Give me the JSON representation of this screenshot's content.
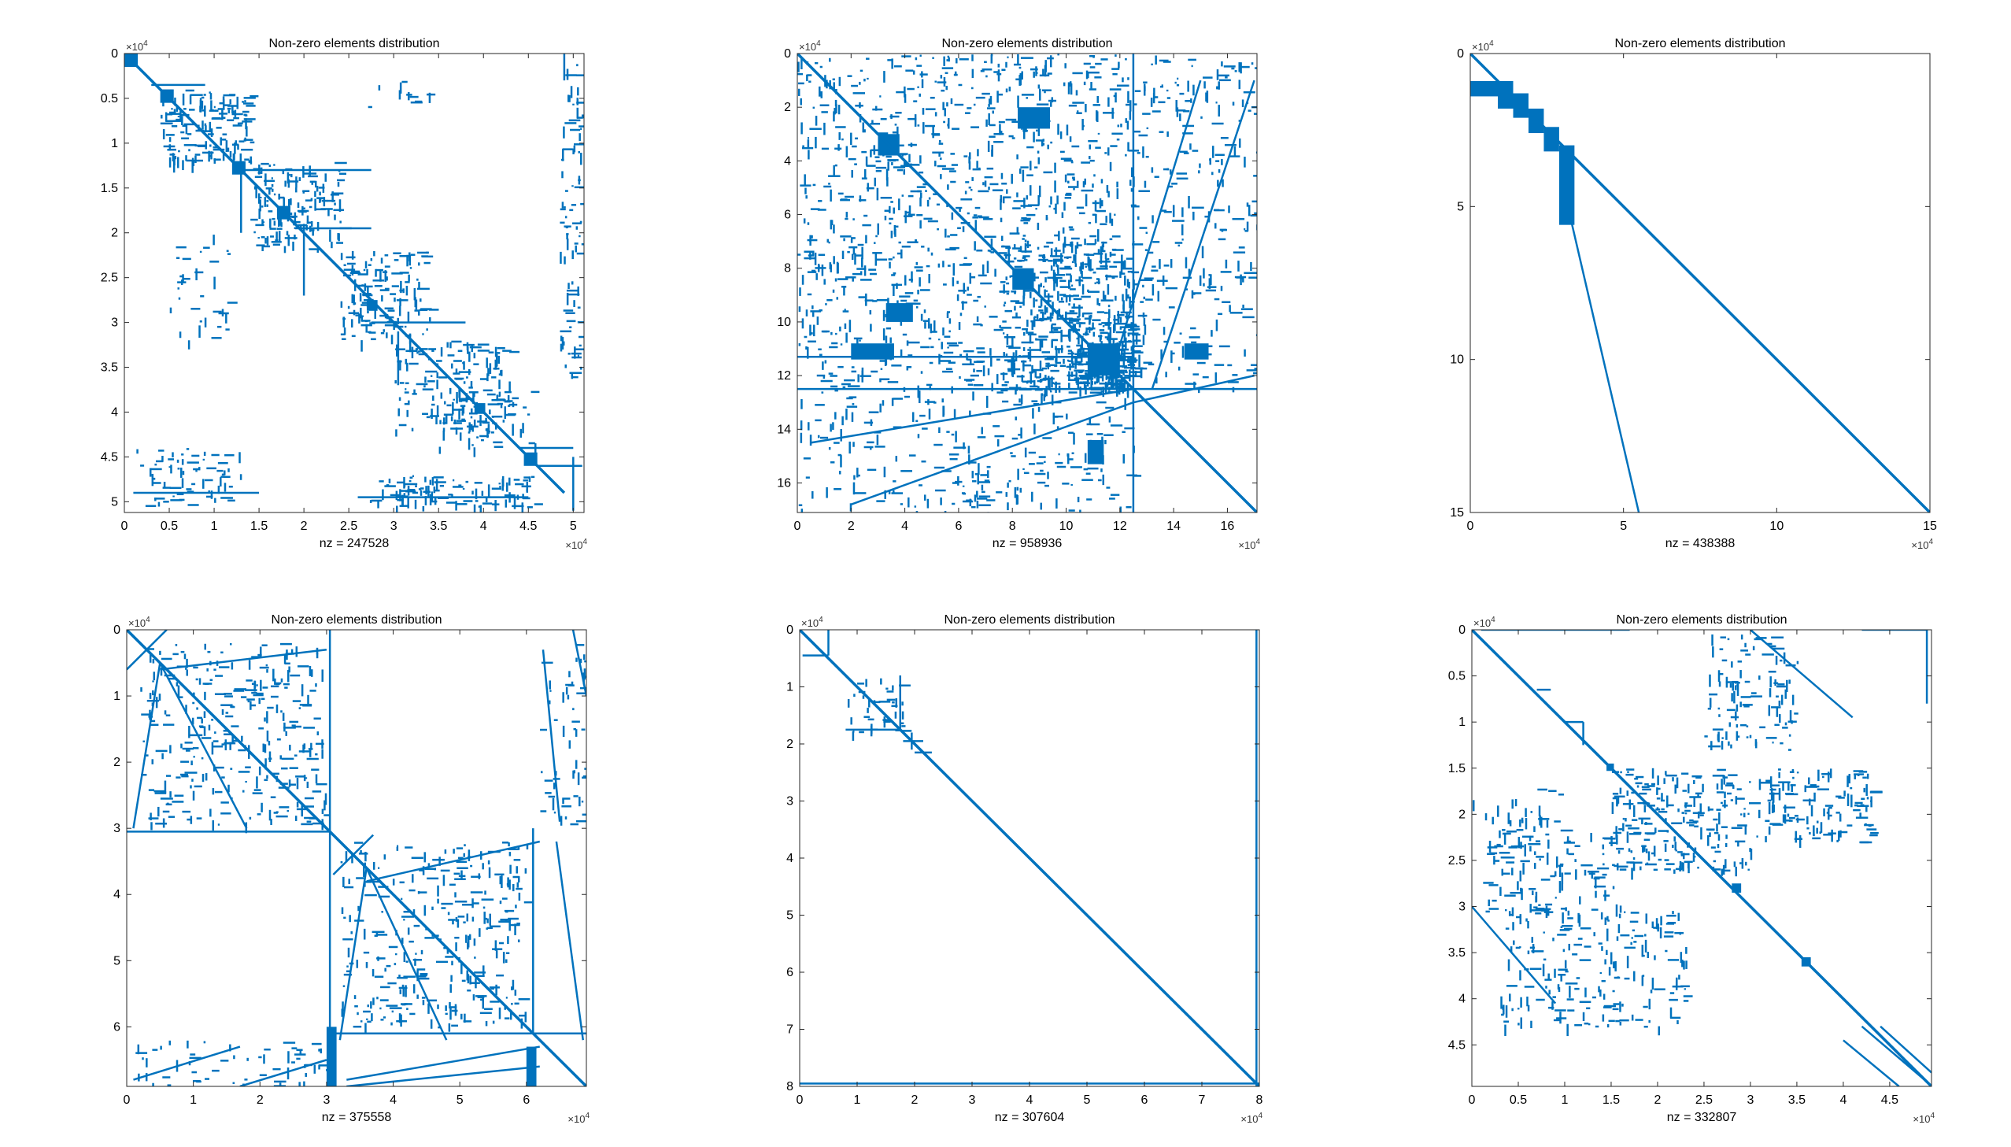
{
  "colors": {
    "marker": "#0072BD",
    "axes": "#262626",
    "background": "#ffffff"
  },
  "chart_data": [
    {
      "type": "scatter",
      "subtype": "sparsity-pattern",
      "title": "Non-zero elements distribution",
      "xlabel": "nz = 247528",
      "exponent_label": "×10",
      "exponent_power": "4",
      "xlim": [
        0,
        5.12
      ],
      "ylim": [
        0,
        5.12
      ],
      "y_reversed": true,
      "xticks": [
        0,
        0.5,
        1,
        1.5,
        2,
        2.5,
        3,
        3.5,
        4,
        4.5,
        5
      ],
      "xtick_labels": [
        "0",
        "0.5",
        "1",
        "1.5",
        "2",
        "2.5",
        "3",
        "3.5",
        "4",
        "4.5",
        "5"
      ],
      "yticks": [
        0,
        0.5,
        1,
        1.5,
        2,
        2.5,
        3,
        3.5,
        4,
        4.5,
        5
      ],
      "ytick_labels": [
        "0",
        "0.5",
        "1",
        "1.5",
        "2",
        "2.5",
        "3",
        "3.5",
        "4",
        "4.5",
        "5"
      ],
      "diagonals": [
        {
          "x1": 0,
          "y1": 0,
          "x2": 4.9,
          "y2": 4.9
        }
      ],
      "segments": [
        {
          "x1": 1.3,
          "y1": 1.3,
          "x2": 2.75,
          "y2": 1.3
        },
        {
          "x1": 1.3,
          "y1": 1.3,
          "x2": 1.3,
          "y2": 2.0
        },
        {
          "x1": 1.9,
          "y1": 1.95,
          "x2": 2.75,
          "y2": 1.95
        },
        {
          "x1": 2.0,
          "y1": 1.9,
          "x2": 2.0,
          "y2": 2.7
        },
        {
          "x1": 2.75,
          "y1": 3.0,
          "x2": 3.8,
          "y2": 3.0
        },
        {
          "x1": 3.05,
          "y1": 3.1,
          "x2": 3.05,
          "y2": 3.7
        },
        {
          "x1": 0.3,
          "y1": 0.35,
          "x2": 0.9,
          "y2": 0.35
        },
        {
          "x1": 4.4,
          "y1": 4.4,
          "x2": 5.0,
          "y2": 4.4
        },
        {
          "x1": 0.1,
          "y1": 4.9,
          "x2": 1.5,
          "y2": 4.9
        },
        {
          "x1": 2.6,
          "y1": 4.95,
          "x2": 4.5,
          "y2": 4.95
        },
        {
          "x1": 4.9,
          "y1": 0,
          "x2": 4.9,
          "y2": 0.3
        },
        {
          "x1": 5.0,
          "y1": 4.5,
          "x2": 5.0,
          "y2": 5.1
        },
        {
          "x1": 4.6,
          "y1": 4.6,
          "x2": 5.1,
          "y2": 4.6
        }
      ],
      "blocks": [
        {
          "x": 0,
          "y": 0,
          "w": 0.15,
          "h": 0.15
        },
        {
          "x": 0.4,
          "y": 0.4,
          "w": 0.15,
          "h": 0.15
        },
        {
          "x": 1.2,
          "y": 1.2,
          "w": 0.15,
          "h": 0.15
        },
        {
          "x": 1.7,
          "y": 1.7,
          "w": 0.15,
          "h": 0.15
        },
        {
          "x": 2.7,
          "y": 2.75,
          "w": 0.12,
          "h": 0.12
        },
        {
          "x": 3.9,
          "y": 3.9,
          "w": 0.12,
          "h": 0.12
        },
        {
          "x": 4.45,
          "y": 4.45,
          "w": 0.15,
          "h": 0.15
        }
      ],
      "clusters": [
        {
          "x1": 0.4,
          "y1": 0.4,
          "x2": 1.4,
          "y2": 1.2,
          "n": 160
        },
        {
          "x1": 1.4,
          "y1": 1.2,
          "x2": 2.4,
          "y2": 2.2,
          "n": 150
        },
        {
          "x1": 2.4,
          "y1": 2.2,
          "x2": 3.4,
          "y2": 3.2,
          "n": 140
        },
        {
          "x1": 3.0,
          "y1": 3.2,
          "x2": 4.3,
          "y2": 4.2,
          "n": 150
        },
        {
          "x1": 0.1,
          "y1": 4.4,
          "x2": 1.3,
          "y2": 5.05,
          "n": 70
        },
        {
          "x1": 2.7,
          "y1": 4.7,
          "x2": 4.6,
          "y2": 5.05,
          "n": 110
        },
        {
          "x1": 4.85,
          "y1": 0.1,
          "x2": 5.1,
          "y2": 3.6,
          "n": 90
        },
        {
          "x1": 0.5,
          "y1": 2.0,
          "x2": 1.2,
          "y2": 3.2,
          "n": 35
        },
        {
          "x1": 2.7,
          "y1": 0.3,
          "x2": 3.4,
          "y2": 0.6,
          "n": 12
        },
        {
          "x1": 3.5,
          "y1": 3.6,
          "x2": 4.6,
          "y2": 4.4,
          "n": 60
        }
      ]
    },
    {
      "type": "scatter",
      "subtype": "sparsity-pattern",
      "title": "Non-zero elements distribution",
      "xlabel": "nz = 958936",
      "exponent_label": "×10",
      "exponent_power": "4",
      "xlim": [
        0,
        17.1
      ],
      "ylim": [
        0,
        17.1
      ],
      "y_reversed": true,
      "xticks": [
        0,
        2,
        4,
        6,
        8,
        10,
        12,
        14,
        16
      ],
      "xtick_labels": [
        "0",
        "2",
        "4",
        "6",
        "8",
        "10",
        "12",
        "14",
        "16"
      ],
      "yticks": [
        0,
        2,
        4,
        6,
        8,
        10,
        12,
        14,
        16
      ],
      "ytick_labels": [
        "0",
        "2",
        "4",
        "6",
        "8",
        "10",
        "12",
        "14",
        "16"
      ],
      "diagonals": [
        {
          "x1": 0,
          "y1": 0,
          "x2": 17.1,
          "y2": 17.1
        },
        {
          "x1": 0.5,
          "y1": 14.5,
          "x2": 12.5,
          "y2": 12.5
        },
        {
          "x1": 2.0,
          "y1": 16.8,
          "x2": 12.5,
          "y2": 13.0
        },
        {
          "x1": 13.2,
          "y1": 12.5,
          "x2": 17.0,
          "y2": 1.0
        },
        {
          "x1": 11.5,
          "y1": 12.5,
          "x2": 15.0,
          "y2": 1.0
        },
        {
          "x1": 12.5,
          "y1": 13.0,
          "x2": 17.0,
          "y2": 12.0
        }
      ],
      "segments": [
        {
          "x1": 0,
          "y1": 12.5,
          "x2": 17.1,
          "y2": 12.5
        },
        {
          "x1": 12.5,
          "y1": 0,
          "x2": 12.5,
          "y2": 17.1
        },
        {
          "x1": 0,
          "y1": 11.3,
          "x2": 12.5,
          "y2": 11.3
        }
      ],
      "blocks": [
        {
          "x": 10.8,
          "y": 10.8,
          "w": 1.2,
          "h": 1.2
        },
        {
          "x": 3.0,
          "y": 3.0,
          "w": 0.8,
          "h": 0.8
        },
        {
          "x": 8.0,
          "y": 8.0,
          "w": 0.8,
          "h": 0.8
        },
        {
          "x": 10.8,
          "y": 14.4,
          "w": 0.6,
          "h": 0.9
        },
        {
          "x": 14.4,
          "y": 10.8,
          "w": 0.9,
          "h": 0.6
        },
        {
          "x": 8.2,
          "y": 2.0,
          "w": 1.2,
          "h": 0.8
        },
        {
          "x": 3.3,
          "y": 9.3,
          "w": 1.0,
          "h": 0.7
        },
        {
          "x": 2.0,
          "y": 10.8,
          "w": 1.6,
          "h": 0.6
        }
      ],
      "clusters": [
        {
          "x1": 0,
          "y1": 0,
          "x2": 12.5,
          "y2": 12.5,
          "n": 1100
        },
        {
          "x1": 12.5,
          "y1": 0,
          "x2": 17.1,
          "y2": 12.5,
          "n": 260
        },
        {
          "x1": 0,
          "y1": 12.5,
          "x2": 12.5,
          "y2": 17.1,
          "n": 260
        },
        {
          "x1": 7.5,
          "y1": 7.0,
          "x2": 12.5,
          "y2": 12.5,
          "n": 300
        },
        {
          "x1": 10.0,
          "y1": 10.0,
          "x2": 12.5,
          "y2": 12.5,
          "n": 200
        }
      ]
    },
    {
      "type": "scatter",
      "subtype": "sparsity-pattern",
      "title": "Non-zero elements distribution",
      "xlabel": "nz = 438388",
      "exponent_label": "×10",
      "exponent_power": "4",
      "xlim": [
        0,
        15
      ],
      "ylim": [
        0,
        15
      ],
      "y_reversed": true,
      "xticks": [
        0,
        5,
        10,
        15
      ],
      "xtick_labels": [
        "0",
        "5",
        "10",
        "15"
      ],
      "yticks": [
        0,
        5,
        10,
        15
      ],
      "ytick_labels": [
        "0",
        "5",
        "10",
        "15"
      ],
      "diagonals": [
        {
          "x1": 0,
          "y1": 0,
          "x2": 15,
          "y2": 15
        },
        {
          "x1": 3.3,
          "y1": 5.5,
          "x2": 5.5,
          "y2": 15
        }
      ],
      "segments": [],
      "blocks": [
        {
          "x": 0,
          "y": 0.9,
          "w": 1.0,
          "h": 0.5
        },
        {
          "x": 0.9,
          "y": 0.9,
          "w": 0.5,
          "h": 0.9
        },
        {
          "x": 1.4,
          "y": 1.3,
          "w": 0.5,
          "h": 0.8
        },
        {
          "x": 1.9,
          "y": 1.8,
          "w": 0.5,
          "h": 0.8
        },
        {
          "x": 2.4,
          "y": 2.4,
          "w": 0.5,
          "h": 0.8
        },
        {
          "x": 2.9,
          "y": 3.0,
          "w": 0.5,
          "h": 2.6
        }
      ],
      "clusters": []
    },
    {
      "type": "scatter",
      "subtype": "sparsity-pattern",
      "title": "Non-zero elements distribution",
      "xlabel": "nz = 375558",
      "exponent_label": "×10",
      "exponent_power": "4",
      "xlim": [
        0,
        6.9
      ],
      "ylim": [
        0,
        6.9
      ],
      "y_reversed": true,
      "xticks": [
        0,
        1,
        2,
        3,
        4,
        5,
        6
      ],
      "xtick_labels": [
        "0",
        "1",
        "2",
        "3",
        "4",
        "5",
        "6"
      ],
      "yticks": [
        0,
        1,
        2,
        3,
        4,
        5,
        6
      ],
      "ytick_labels": [
        "0",
        "1",
        "2",
        "3",
        "4",
        "5",
        "6"
      ],
      "diagonals": [
        {
          "x1": 0,
          "y1": 0,
          "x2": 6.9,
          "y2": 6.9
        },
        {
          "x1": 0,
          "y1": 0.6,
          "x2": 0.6,
          "y2": 0
        },
        {
          "x1": 3.1,
          "y1": 3.7,
          "x2": 3.7,
          "y2": 3.1
        },
        {
          "x1": 0.1,
          "y1": 3.0,
          "x2": 0.5,
          "y2": 0.5
        },
        {
          "x1": 0.5,
          "y1": 0.5,
          "x2": 1.8,
          "y2": 3.0
        },
        {
          "x1": 3.2,
          "y1": 6.2,
          "x2": 3.6,
          "y2": 3.6
        },
        {
          "x1": 3.6,
          "y1": 3.6,
          "x2": 4.8,
          "y2": 6.2
        },
        {
          "x1": 0.5,
          "y1": 0.6,
          "x2": 3.0,
          "y2": 0.3
        },
        {
          "x1": 3.6,
          "y1": 3.8,
          "x2": 6.2,
          "y2": 3.2
        },
        {
          "x1": 0.1,
          "y1": 6.8,
          "x2": 1.7,
          "y2": 6.3
        },
        {
          "x1": 1.7,
          "y1": 6.9,
          "x2": 3.0,
          "y2": 6.5
        },
        {
          "x1": 3.3,
          "y1": 6.8,
          "x2": 6.2,
          "y2": 6.3
        },
        {
          "x1": 3.3,
          "y1": 6.9,
          "x2": 6.2,
          "y2": 6.6
        },
        {
          "x1": 6.25,
          "y1": 0.3,
          "x2": 6.5,
          "y2": 2.9
        },
        {
          "x1": 6.45,
          "y1": 3.2,
          "x2": 6.85,
          "y2": 6.2
        },
        {
          "x1": 6.7,
          "y1": 0,
          "x2": 6.9,
          "y2": 1.0
        }
      ],
      "segments": [
        {
          "x1": 0,
          "y1": 3.05,
          "x2": 3.05,
          "y2": 3.05
        },
        {
          "x1": 3.05,
          "y1": 0,
          "x2": 3.05,
          "y2": 3.05
        },
        {
          "x1": 3.1,
          "y1": 6.1,
          "x2": 6.1,
          "y2": 6.1
        },
        {
          "x1": 6.1,
          "y1": 3.0,
          "x2": 6.1,
          "y2": 6.1
        },
        {
          "x1": 3.05,
          "y1": 3.05,
          "x2": 3.05,
          "y2": 6.9
        },
        {
          "x1": 6.1,
          "y1": 6.1,
          "x2": 6.9,
          "y2": 6.1
        }
      ],
      "blocks": [
        {
          "x": 3.0,
          "y": 6.0,
          "w": 0.15,
          "h": 0.9
        },
        {
          "x": 6.0,
          "y": 6.3,
          "w": 0.15,
          "h": 0.6
        }
      ],
      "clusters": [
        {
          "x1": 0.2,
          "y1": 0.2,
          "x2": 3.0,
          "y2": 3.0,
          "n": 320
        },
        {
          "x1": 3.2,
          "y1": 3.2,
          "x2": 6.0,
          "y2": 6.0,
          "n": 320
        },
        {
          "x1": 6.2,
          "y1": 0.2,
          "x2": 6.9,
          "y2": 3.0,
          "n": 60
        },
        {
          "x1": 0.1,
          "y1": 6.2,
          "x2": 3.0,
          "y2": 6.9,
          "n": 60
        }
      ]
    },
    {
      "type": "scatter",
      "subtype": "sparsity-pattern",
      "title": "Non-zero elements distribution",
      "xlabel": "nz = 307604",
      "exponent_label": "×10",
      "exponent_power": "4",
      "xlim": [
        0,
        8
      ],
      "ylim": [
        0,
        8
      ],
      "y_reversed": true,
      "xticks": [
        0,
        1,
        2,
        3,
        4,
        5,
        6,
        7,
        8
      ],
      "xtick_labels": [
        "0",
        "1",
        "2",
        "3",
        "4",
        "5",
        "6",
        "7",
        "8"
      ],
      "yticks": [
        0,
        1,
        2,
        3,
        4,
        5,
        6,
        7,
        8
      ],
      "ytick_labels": [
        "0",
        "1",
        "2",
        "3",
        "4",
        "5",
        "6",
        "7",
        "8"
      ],
      "diagonals": [
        {
          "x1": 0,
          "y1": 0,
          "x2": 8,
          "y2": 8
        }
      ],
      "segments": [
        {
          "x1": 0,
          "y1": 7.95,
          "x2": 8,
          "y2": 7.95
        },
        {
          "x1": 7.95,
          "y1": 0,
          "x2": 7.95,
          "y2": 8
        },
        {
          "x1": 0.05,
          "y1": 0.45,
          "x2": 0.5,
          "y2": 0.45
        },
        {
          "x1": 0.5,
          "y1": 0,
          "x2": 0.5,
          "y2": 0.45
        },
        {
          "x1": 0.8,
          "y1": 1.75,
          "x2": 1.75,
          "y2": 1.75
        },
        {
          "x1": 1.75,
          "y1": 0.8,
          "x2": 1.75,
          "y2": 1.75
        },
        {
          "x1": 1.8,
          "y1": 1.95,
          "x2": 2.15,
          "y2": 1.95
        },
        {
          "x1": 1.95,
          "y1": 1.8,
          "x2": 1.95,
          "y2": 2.1
        },
        {
          "x1": 2.0,
          "y1": 2.15,
          "x2": 2.3,
          "y2": 2.15
        }
      ],
      "blocks": [],
      "clusters": [
        {
          "x1": 0.8,
          "y1": 0.8,
          "x2": 1.8,
          "y2": 1.8,
          "n": 40
        }
      ]
    },
    {
      "type": "scatter",
      "subtype": "sparsity-pattern",
      "title": "Non-zero elements distribution",
      "xlabel": "nz = 332807",
      "exponent_label": "×10",
      "exponent_power": "4",
      "xlim": [
        0,
        4.95
      ],
      "ylim": [
        0,
        4.95
      ],
      "y_reversed": true,
      "xticks": [
        0,
        0.5,
        1,
        1.5,
        2,
        2.5,
        3,
        3.5,
        4,
        4.5
      ],
      "xtick_labels": [
        "0",
        "0.5",
        "1",
        "1.5",
        "2",
        "2.5",
        "3",
        "3.5",
        "4",
        "4.5"
      ],
      "yticks": [
        0,
        0.5,
        1,
        1.5,
        2,
        2.5,
        3,
        3.5,
        4,
        4.5
      ],
      "ytick_labels": [
        "0",
        "0.5",
        "1",
        "1.5",
        "2",
        "2.5",
        "3",
        "3.5",
        "4",
        "4.5"
      ],
      "diagonals": [
        {
          "x1": 0,
          "y1": 0,
          "x2": 4.95,
          "y2": 4.95
        },
        {
          "x1": 3.0,
          "y1": 0,
          "x2": 4.1,
          "y2": 0.95
        },
        {
          "x1": 0,
          "y1": 3.0,
          "x2": 0.9,
          "y2": 4.05
        },
        {
          "x1": 4.2,
          "y1": 4.3,
          "x2": 4.9,
          "y2": 4.9
        },
        {
          "x1": 4.4,
          "y1": 4.3,
          "x2": 4.95,
          "y2": 4.8
        },
        {
          "x1": 4.0,
          "y1": 4.45,
          "x2": 4.6,
          "y2": 4.95
        }
      ],
      "segments": [
        {
          "x1": 1.0,
          "y1": 1.0,
          "x2": 1.2,
          "y2": 1.0
        },
        {
          "x1": 1.2,
          "y1": 1.0,
          "x2": 1.2,
          "y2": 1.25
        },
        {
          "x1": 0.7,
          "y1": 0.65,
          "x2": 0.85,
          "y2": 0.65
        },
        {
          "x1": 0.1,
          "y1": 0,
          "x2": 1.7,
          "y2": 0
        },
        {
          "x1": 4.2,
          "y1": 0,
          "x2": 4.9,
          "y2": 0
        },
        {
          "x1": 4.9,
          "y1": 0,
          "x2": 4.9,
          "y2": 0.8
        }
      ],
      "blocks": [
        {
          "x": 3.55,
          "y": 3.55,
          "w": 0.1,
          "h": 0.1
        },
        {
          "x": 2.8,
          "y": 2.75,
          "w": 0.1,
          "h": 0.1
        },
        {
          "x": 1.45,
          "y": 1.45,
          "w": 0.08,
          "h": 0.08
        }
      ],
      "clusters": [
        {
          "x1": 1.5,
          "y1": 1.5,
          "x2": 3.0,
          "y2": 2.6,
          "n": 220
        },
        {
          "x1": 3.05,
          "y1": 1.5,
          "x2": 4.3,
          "y2": 2.3,
          "n": 130
        },
        {
          "x1": 2.5,
          "y1": 0.05,
          "x2": 3.5,
          "y2": 1.3,
          "n": 110
        },
        {
          "x1": 0.1,
          "y1": 2.2,
          "x2": 1.6,
          "y2": 3.1,
          "n": 120
        },
        {
          "x1": 0.3,
          "y1": 3.0,
          "x2": 2.3,
          "y2": 4.3,
          "n": 200
        },
        {
          "x1": 0.0,
          "y1": 1.7,
          "x2": 1.0,
          "y2": 2.2,
          "n": 30
        }
      ]
    }
  ]
}
